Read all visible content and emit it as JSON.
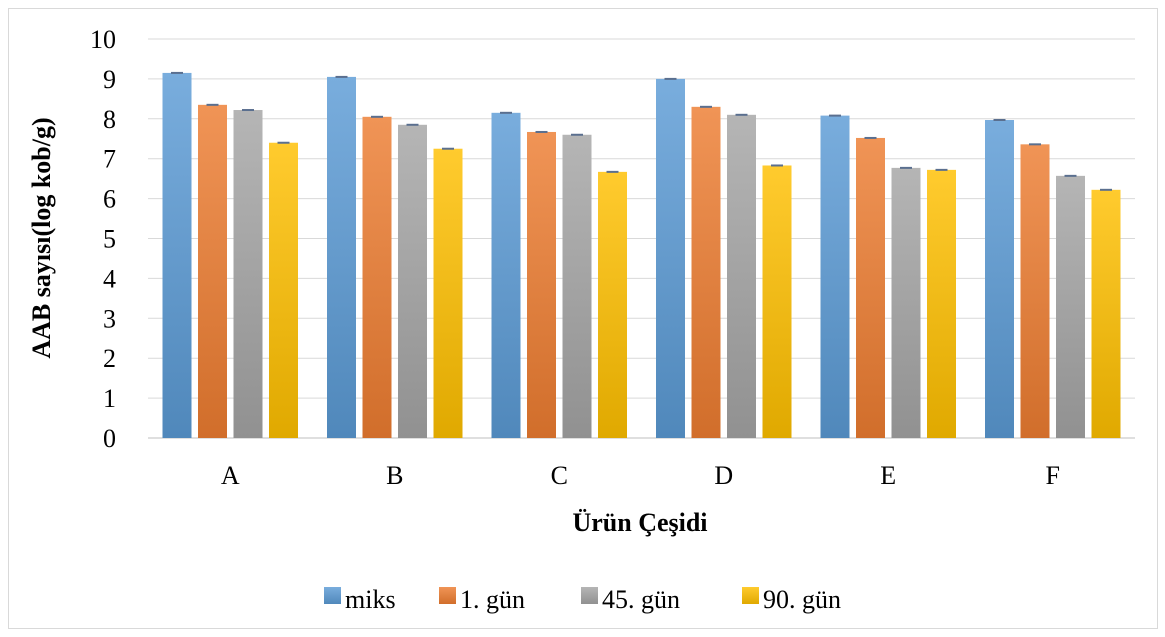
{
  "chart_data": {
    "type": "bar",
    "title": "",
    "xlabel": "Ürün Çeşidi",
    "ylabel": "AAB sayısı(log kob/g)",
    "ylim": [
      0,
      10
    ],
    "yticks": [
      "0",
      "1",
      "2",
      "3",
      "4",
      "5",
      "6",
      "7",
      "8",
      "9",
      "10"
    ],
    "categories": [
      "A",
      "B",
      "C",
      "D",
      "E",
      "F"
    ],
    "grid": true,
    "legend_position": "bottom",
    "series": [
      {
        "name": "miks",
        "color": "#5b9bd5",
        "values": [
          9.15,
          9.05,
          8.15,
          9.0,
          8.08,
          7.97
        ]
      },
      {
        "name": "1. gün",
        "color": "#ed7d31",
        "values": [
          8.35,
          8.05,
          7.67,
          8.3,
          7.52,
          7.36
        ]
      },
      {
        "name": "45. gün",
        "color": "#a5a5a5",
        "values": [
          8.22,
          7.85,
          7.6,
          8.1,
          6.77,
          6.57
        ]
      },
      {
        "name": "90. gün",
        "color": "#ffc000",
        "values": [
          7.4,
          7.25,
          6.67,
          6.83,
          6.72,
          6.22
        ]
      }
    ]
  }
}
